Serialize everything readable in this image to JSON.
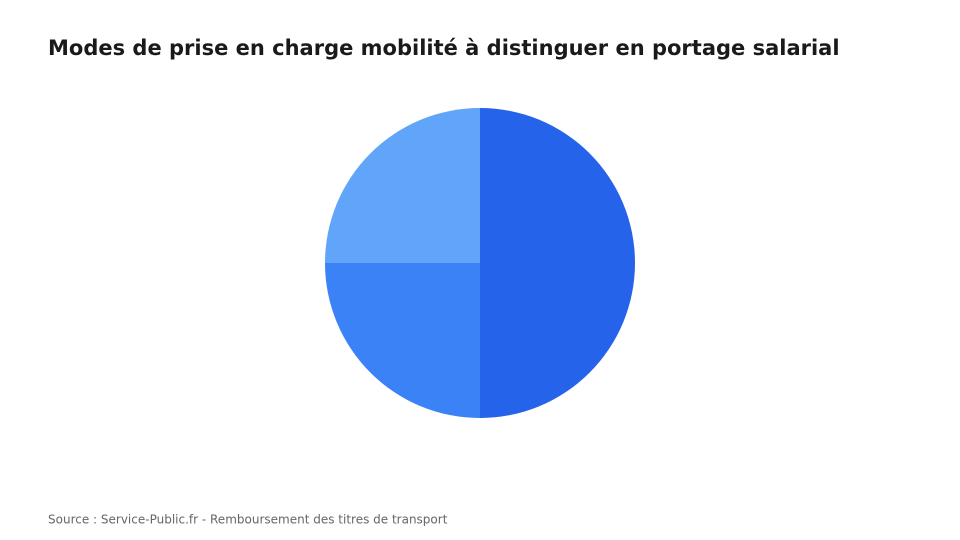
{
  "chart_data": {
    "type": "pie",
    "title": "Modes de prise en charge mobilité à distinguer en portage salarial",
    "source": "Source : Service-Public.fr - Remboursement des titres de transport",
    "values": [
      50,
      25,
      25
    ],
    "colors": [
      "#2563eb",
      "#3b82f6",
      "#60a5fa"
    ]
  }
}
